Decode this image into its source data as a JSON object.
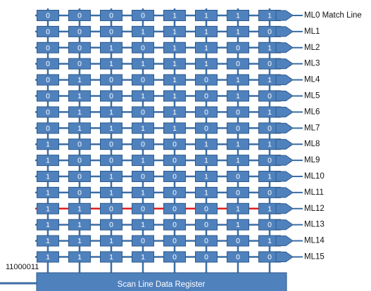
{
  "diagram": {
    "register_label": "Scan Line Data Register",
    "search_input": "11000011",
    "match_row_index": 12,
    "colors": {
      "cell_fill": "#4f81bd",
      "cell_stroke": "#2e5b8c",
      "line": "#3b6ea5",
      "match_line": "#e01e1e",
      "register_fill": "#4f81bd"
    },
    "match_lines": [
      "ML0 Match Line",
      "ML1",
      "ML2",
      "ML3",
      "ML4",
      "ML5",
      "ML6",
      "ML7",
      "ML8",
      "ML9",
      "ML10",
      "ML11",
      "ML12",
      "ML13",
      "ML14",
      "ML15"
    ],
    "rows": [
      [
        "0",
        "0",
        "0",
        "0",
        "1",
        "1",
        "1",
        "1"
      ],
      [
        "0",
        "0",
        "0",
        "1",
        "1",
        "1",
        "1",
        "0"
      ],
      [
        "0",
        "0",
        "1",
        "0",
        "1",
        "1",
        "0",
        "1"
      ],
      [
        "0",
        "0",
        "1",
        "1",
        "1",
        "1",
        "0",
        "0"
      ],
      [
        "0",
        "1",
        "0",
        "0",
        "1",
        "0",
        "1",
        "1"
      ],
      [
        "0",
        "1",
        "0",
        "1",
        "1",
        "0",
        "1",
        "0"
      ],
      [
        "0",
        "1",
        "1",
        "0",
        "1",
        "0",
        "0",
        "1"
      ],
      [
        "0",
        "1",
        "1",
        "1",
        "1",
        "0",
        "0",
        "0"
      ],
      [
        "1",
        "0",
        "0",
        "0",
        "0",
        "1",
        "1",
        "1"
      ],
      [
        "1",
        "0",
        "0",
        "1",
        "0",
        "1",
        "1",
        "0"
      ],
      [
        "1",
        "0",
        "1",
        "0",
        "0",
        "1",
        "0",
        "1"
      ],
      [
        "1",
        "0",
        "1",
        "1",
        "0",
        "1",
        "0",
        "0"
      ],
      [
        "1",
        "1",
        "0",
        "0",
        "0",
        "0",
        "1",
        "1"
      ],
      [
        "1",
        "1",
        "0",
        "1",
        "0",
        "0",
        "1",
        "0"
      ],
      [
        "1",
        "1",
        "1",
        "0",
        "0",
        "0",
        "0",
        "1"
      ],
      [
        "1",
        "1",
        "1",
        "1",
        "0",
        "0",
        "0",
        "0"
      ]
    ]
  }
}
